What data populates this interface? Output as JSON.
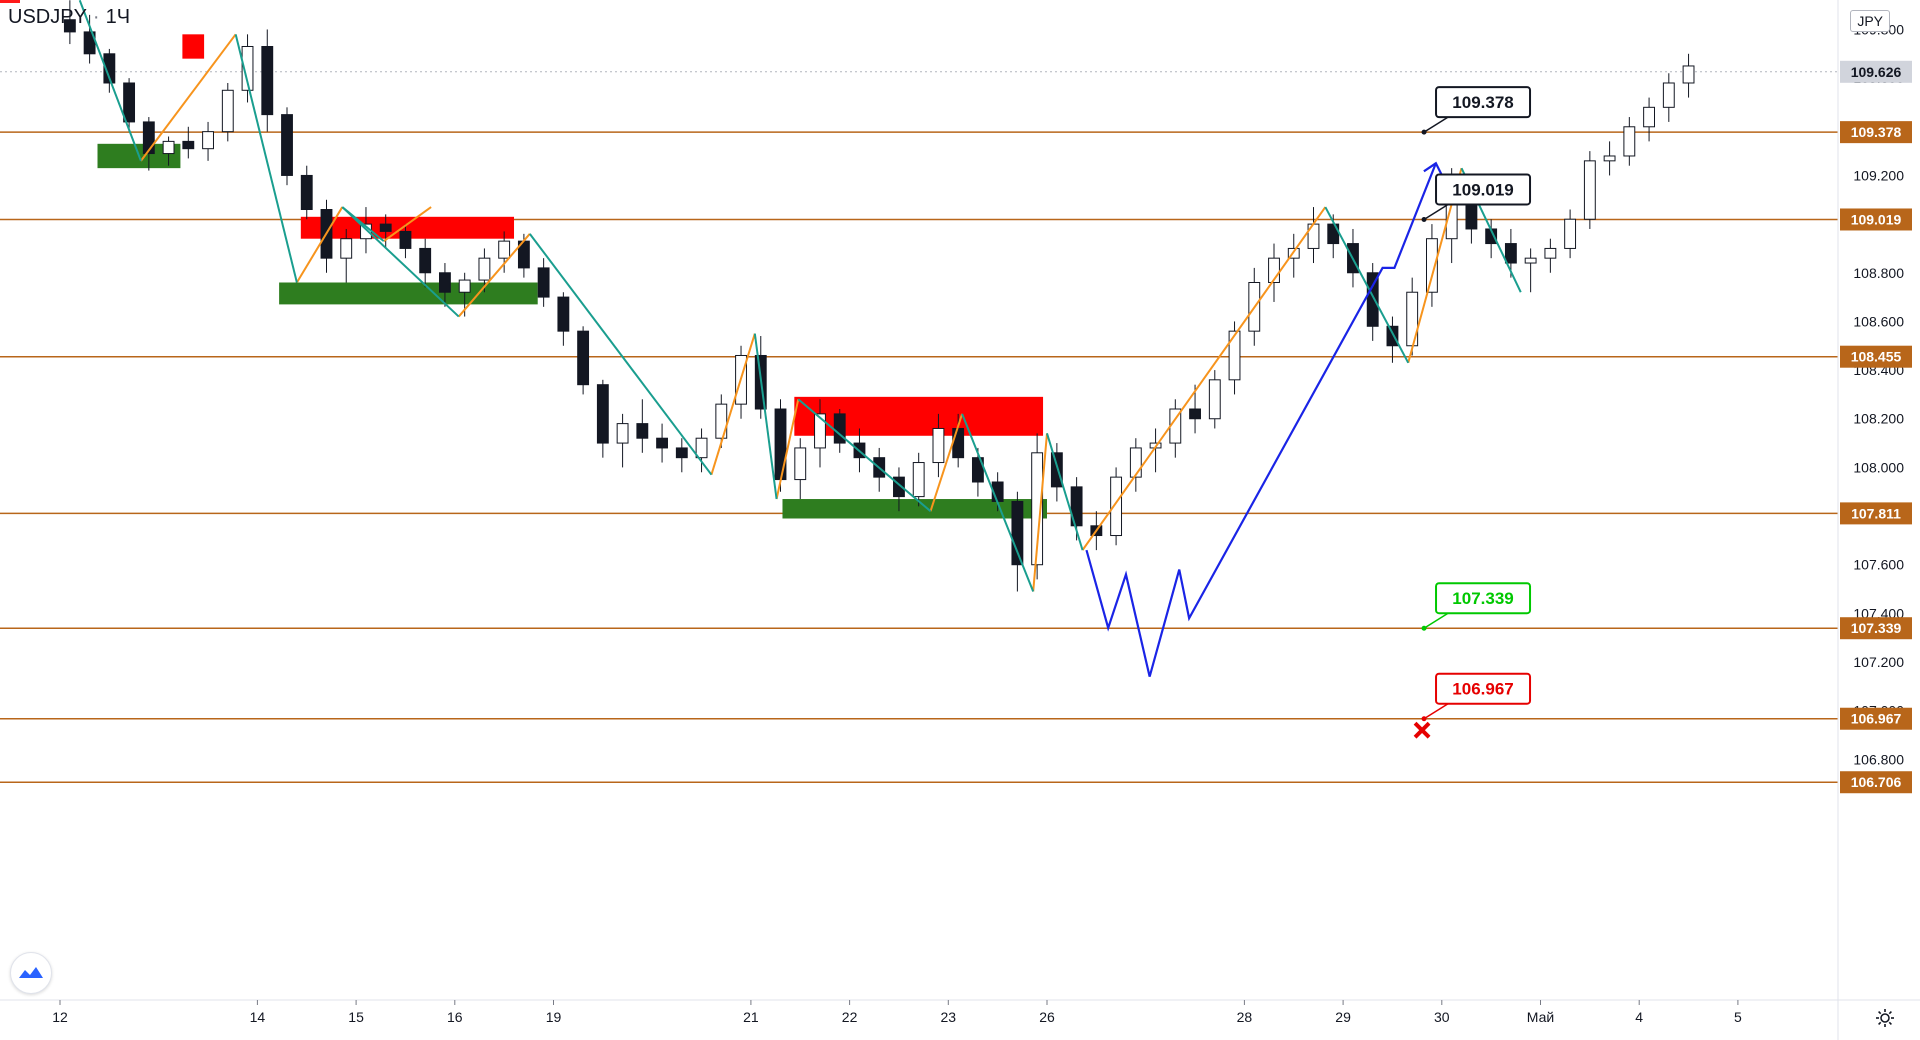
{
  "header": {
    "symbol": "USDJPY",
    "interval": "1Ч",
    "currency": "JPY"
  },
  "colors": {
    "level_line": "#b8661a",
    "level_label_bg": "#b8661a",
    "current_price_bg": "#d1d4dc",
    "supply_zone": "#ff0000",
    "demand_zone": "#2e7d1f",
    "wave_up": "#f7941d",
    "wave_down": "#1a9e8f",
    "projection": "#1a24e6",
    "candle": "#131722",
    "target_green": "#00c800",
    "stop_red": "#e60000"
  },
  "chart_data": {
    "type": "candlestick",
    "symbol": "USDJPY",
    "timeframe": "1H",
    "y_axis": {
      "scale": "linear",
      "ticks": [
        "109.800",
        "109.600",
        "109.400",
        "109.200",
        "109.000",
        "108.800",
        "108.600",
        "108.400",
        "108.200",
        "108.000",
        "107.800",
        "107.600",
        "107.400",
        "107.200",
        "107.000",
        "106.800"
      ],
      "tick_values": [
        109.8,
        109.6,
        109.4,
        109.2,
        109.0,
        108.8,
        108.6,
        108.4,
        108.2,
        108.0,
        107.8,
        107.6,
        107.4,
        107.2,
        107.0,
        106.8
      ],
      "range": [
        106.56,
        109.88
      ]
    },
    "x_axis": {
      "ticks": [
        "12",
        "14",
        "15",
        "16",
        "19",
        "21",
        "22",
        "23",
        "26",
        "28",
        "29",
        "30",
        "Май",
        "4",
        "5"
      ],
      "tick_index": [
        0,
        10,
        15,
        20,
        25,
        35,
        40,
        45,
        50,
        60,
        65,
        70,
        75,
        80,
        85
      ]
    },
    "current_price": {
      "label": "109.626",
      "value": 109.626
    },
    "levels": [
      {
        "label": "109.378",
        "value": 109.378
      },
      {
        "label": "109.019",
        "value": 109.019
      },
      {
        "label": "108.455",
        "value": 108.455
      },
      {
        "label": "107.811",
        "value": 107.811
      },
      {
        "label": "107.339",
        "value": 107.339
      },
      {
        "label": "106.967",
        "value": 106.967
      },
      {
        "label": "106.706",
        "value": 106.706
      }
    ],
    "callouts": [
      {
        "label": "109.378",
        "value": 109.378,
        "style": "black"
      },
      {
        "label": "109.019",
        "value": 109.019,
        "style": "black"
      },
      {
        "label": "107.339",
        "value": 107.339,
        "style": "green"
      },
      {
        "label": "106.967",
        "value": 106.967,
        "style": "red"
      }
    ],
    "zones": [
      {
        "kind": "supply",
        "x_from": 6.2,
        "x_to": 7.3,
        "y_low": 109.68,
        "y_high": 109.78
      },
      {
        "kind": "demand",
        "x_from": 1.9,
        "x_to": 6.1,
        "y_low": 109.23,
        "y_high": 109.33
      },
      {
        "kind": "supply",
        "x_from": 12.2,
        "x_to": 23.0,
        "y_low": 108.94,
        "y_high": 109.03
      },
      {
        "kind": "demand",
        "x_from": 11.1,
        "x_to": 24.2,
        "y_low": 108.67,
        "y_high": 108.76
      },
      {
        "kind": "supply",
        "x_from": 37.2,
        "x_to": 49.8,
        "y_low": 108.13,
        "y_high": 108.29
      },
      {
        "kind": "demand",
        "x_from": 36.6,
        "x_to": 50.0,
        "y_low": 107.79,
        "y_high": 107.87
      }
    ],
    "waves_up": [
      [
        [
          4.1,
          109.26
        ],
        [
          8.9,
          109.78
        ]
      ],
      [
        [
          12.0,
          108.76
        ],
        [
          14.3,
          109.07
        ]
      ],
      [
        [
          16.4,
          108.93
        ],
        [
          18.8,
          109.07
        ]
      ],
      [
        [
          20.2,
          108.62
        ],
        [
          23.8,
          108.96
        ]
      ],
      [
        [
          33.0,
          107.97
        ],
        [
          35.2,
          108.55
        ]
      ],
      [
        [
          36.3,
          107.87
        ],
        [
          37.4,
          108.28
        ]
      ],
      [
        [
          44.1,
          107.82
        ],
        [
          45.7,
          108.22
        ]
      ],
      [
        [
          49.3,
          107.49
        ],
        [
          50.0,
          108.14
        ]
      ],
      [
        [
          51.8,
          107.66
        ],
        [
          64.1,
          109.07
        ]
      ],
      [
        [
          68.3,
          108.43
        ],
        [
          71.0,
          109.23
        ]
      ]
    ],
    "waves_down": [
      [
        [
          1.0,
          109.92
        ],
        [
          4.1,
          109.26
        ]
      ],
      [
        [
          8.9,
          109.78
        ],
        [
          12.0,
          108.76
        ]
      ],
      [
        [
          14.3,
          109.07
        ],
        [
          16.4,
          108.93
        ]
      ],
      [
        [
          14.3,
          109.07
        ],
        [
          20.2,
          108.62
        ]
      ],
      [
        [
          23.8,
          108.96
        ],
        [
          33.0,
          107.97
        ]
      ],
      [
        [
          35.2,
          108.55
        ],
        [
          36.3,
          107.87
        ]
      ],
      [
        [
          37.4,
          108.28
        ],
        [
          44.1,
          107.82
        ]
      ],
      [
        [
          45.7,
          108.22
        ],
        [
          49.3,
          107.49
        ]
      ],
      [
        [
          50.0,
          108.14
        ],
        [
          51.8,
          107.66
        ]
      ],
      [
        [
          64.1,
          109.07
        ],
        [
          68.3,
          108.43
        ]
      ],
      [
        [
          71.0,
          109.23
        ],
        [
          74.0,
          108.72
        ]
      ]
    ],
    "projection": [
      [
        52.0,
        107.66
      ],
      [
        53.1,
        107.34
      ],
      [
        54.0,
        107.56
      ],
      [
        55.2,
        107.14
      ],
      [
        56.7,
        107.58
      ],
      [
        57.2,
        107.38
      ],
      [
        67.0,
        108.82
      ],
      [
        67.6,
        108.82
      ],
      [
        69.7,
        109.25
      ],
      [
        69.2,
        109.2
      ]
    ],
    "stop_marker": {
      "x": 69.0,
      "value": 106.92
    },
    "candles": [
      [
        109.84,
        109.92,
        109.74,
        109.79
      ],
      [
        109.79,
        109.86,
        109.66,
        109.7
      ],
      [
        109.7,
        109.72,
        109.54,
        109.58
      ],
      [
        109.58,
        109.6,
        109.38,
        109.42
      ],
      [
        109.42,
        109.44,
        109.22,
        109.29
      ],
      [
        109.29,
        109.36,
        109.24,
        109.34
      ],
      [
        109.34,
        109.4,
        109.27,
        109.31
      ],
      [
        109.31,
        109.42,
        109.26,
        109.38
      ],
      [
        109.38,
        109.58,
        109.34,
        109.55
      ],
      [
        109.55,
        109.78,
        109.5,
        109.73
      ],
      [
        109.73,
        109.8,
        109.38,
        109.45
      ],
      [
        109.45,
        109.48,
        109.16,
        109.2
      ],
      [
        109.2,
        109.24,
        109.02,
        109.06
      ],
      [
        109.06,
        109.1,
        108.8,
        108.86
      ],
      [
        108.86,
        108.98,
        108.76,
        108.94
      ],
      [
        108.94,
        109.07,
        108.88,
        109.0
      ],
      [
        109.0,
        109.04,
        108.9,
        108.97
      ],
      [
        108.97,
        109.0,
        108.86,
        108.9
      ],
      [
        108.9,
        108.94,
        108.74,
        108.8
      ],
      [
        108.8,
        108.84,
        108.66,
        108.72
      ],
      [
        108.72,
        108.8,
        108.62,
        108.77
      ],
      [
        108.77,
        108.9,
        108.72,
        108.86
      ],
      [
        108.86,
        108.97,
        108.8,
        108.93
      ],
      [
        108.93,
        108.96,
        108.78,
        108.82
      ],
      [
        108.82,
        108.86,
        108.66,
        108.7
      ],
      [
        108.7,
        108.72,
        108.5,
        108.56
      ],
      [
        108.56,
        108.58,
        108.3,
        108.34
      ],
      [
        108.34,
        108.36,
        108.04,
        108.1
      ],
      [
        108.1,
        108.22,
        108.0,
        108.18
      ],
      [
        108.18,
        108.28,
        108.06,
        108.12
      ],
      [
        108.12,
        108.18,
        108.02,
        108.08
      ],
      [
        108.08,
        108.12,
        107.98,
        108.04
      ],
      [
        108.04,
        108.16,
        107.98,
        108.12
      ],
      [
        108.12,
        108.3,
        108.08,
        108.26
      ],
      [
        108.26,
        108.5,
        108.2,
        108.46
      ],
      [
        108.46,
        108.54,
        108.2,
        108.24
      ],
      [
        108.24,
        108.28,
        107.9,
        107.95
      ],
      [
        107.95,
        108.12,
        107.87,
        108.08
      ],
      [
        108.08,
        108.28,
        108.0,
        108.22
      ],
      [
        108.22,
        108.24,
        108.06,
        108.1
      ],
      [
        108.1,
        108.16,
        107.98,
        108.04
      ],
      [
        108.04,
        108.08,
        107.9,
        107.96
      ],
      [
        107.96,
        108.0,
        107.82,
        107.88
      ],
      [
        107.88,
        108.06,
        107.84,
        108.02
      ],
      [
        108.02,
        108.22,
        107.96,
        108.16
      ],
      [
        108.16,
        108.22,
        108.0,
        108.04
      ],
      [
        108.04,
        108.08,
        107.88,
        107.94
      ],
      [
        107.94,
        107.98,
        107.82,
        107.86
      ],
      [
        107.86,
        107.9,
        107.49,
        107.6
      ],
      [
        107.6,
        108.14,
        107.54,
        108.06
      ],
      [
        108.06,
        108.1,
        107.86,
        107.92
      ],
      [
        107.92,
        107.96,
        107.7,
        107.76
      ],
      [
        107.76,
        107.82,
        107.66,
        107.72
      ],
      [
        107.72,
        108.0,
        107.68,
        107.96
      ],
      [
        107.96,
        108.12,
        107.9,
        108.08
      ],
      [
        108.08,
        108.16,
        107.98,
        108.1
      ],
      [
        108.1,
        108.28,
        108.04,
        108.24
      ],
      [
        108.24,
        108.34,
        108.14,
        108.2
      ],
      [
        108.2,
        108.4,
        108.16,
        108.36
      ],
      [
        108.36,
        108.6,
        108.3,
        108.56
      ],
      [
        108.56,
        108.82,
        108.5,
        108.76
      ],
      [
        108.76,
        108.92,
        108.68,
        108.86
      ],
      [
        108.86,
        108.96,
        108.78,
        108.9
      ],
      [
        108.9,
        109.07,
        108.84,
        109.0
      ],
      [
        109.0,
        109.04,
        108.86,
        108.92
      ],
      [
        108.92,
        108.98,
        108.74,
        108.8
      ],
      [
        108.8,
        108.84,
        108.52,
        108.58
      ],
      [
        108.58,
        108.62,
        108.43,
        108.5
      ],
      [
        108.5,
        108.78,
        108.46,
        108.72
      ],
      [
        108.72,
        109.0,
        108.66,
        108.94
      ],
      [
        108.94,
        109.23,
        108.84,
        109.1
      ],
      [
        109.1,
        109.14,
        108.92,
        108.98
      ],
      [
        108.98,
        109.02,
        108.86,
        108.92
      ],
      [
        108.92,
        108.98,
        108.78,
        108.84
      ],
      [
        108.84,
        108.9,
        108.72,
        108.86
      ],
      [
        108.86,
        108.94,
        108.8,
        108.9
      ],
      [
        108.9,
        109.06,
        108.86,
        109.02
      ],
      [
        109.02,
        109.3,
        108.98,
        109.26
      ],
      [
        109.26,
        109.34,
        109.2,
        109.28
      ],
      [
        109.28,
        109.44,
        109.24,
        109.4
      ],
      [
        109.4,
        109.52,
        109.34,
        109.48
      ],
      [
        109.48,
        109.62,
        109.42,
        109.58
      ],
      [
        109.58,
        109.7,
        109.52,
        109.65
      ]
    ]
  }
}
